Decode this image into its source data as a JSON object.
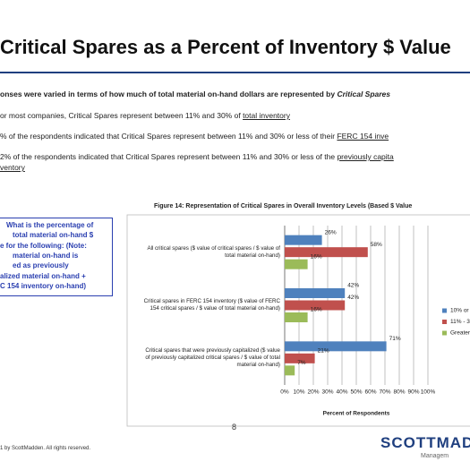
{
  "title": "Critical Spares as a Percent of Inventory $ Value",
  "intro": {
    "text": "onses were varied in terms of how much of total material on-hand dollars are represented by",
    "emphasis": "Critical Spares"
  },
  "bullets": [
    {
      "text": "or most companies, Critical Spares represent between 11% and 30% of",
      "underlined": [
        "total inventory"
      ]
    },
    {
      "text": "% of the respondents indicated that Critical Spares represent between 11% and 30% or less of their",
      "underlined": [
        "FERC 154 inve"
      ]
    },
    {
      "text": "2% of the respondents indicated that Critical Spares represent between 11% and 30% or less of the",
      "underlined": [
        "previously capita",
        "ventory"
      ]
    }
  ],
  "question": [
    "What is the percentage of",
    "total material on-hand $",
    "e for the following:  (Note:",
    "material on-hand is",
    "ed as previously",
    "alized material on-hand +",
    "C 154 inventory on-hand)"
  ],
  "figure_title": "Figure 14:  Representation of Critical Spares in Overall Inventory Levels (Based $ Value",
  "chart_data": {
    "type": "hbar",
    "categories": [
      "All critical spares ($ value of critical spares / $ value of total material on-hand)",
      "Critical spares in FERC 154 inventory ($ value of FERC 154 critical spares / $ value of total material on-hand)",
      "Critical spares that were previously capitalized ($ value of previously capitalized critical spares / $ value of total material on-hand)"
    ],
    "series": [
      {
        "name": "10% or",
        "color": "#4f81bd",
        "values": [
          26,
          42,
          71
        ],
        "value_labels": [
          "26%",
          "42%",
          "71%"
        ]
      },
      {
        "name": "11% - 3",
        "color": "#c0504d",
        "values": [
          58,
          42,
          21
        ],
        "value_labels": [
          "58%",
          "42%",
          "21%"
        ]
      },
      {
        "name": "Greater",
        "color": "#9bbb59",
        "values": [
          16,
          16,
          7
        ],
        "value_labels": [
          "16%",
          "16%",
          "7%"
        ]
      }
    ],
    "xlim": [
      0,
      100
    ],
    "xticks": [
      {
        "value": 0,
        "label": "0%"
      },
      {
        "value": 10,
        "label": "10%"
      },
      {
        "value": 20,
        "label": "20%"
      },
      {
        "value": 30,
        "label": "30%"
      },
      {
        "value": 40,
        "label": "40%"
      },
      {
        "value": 50,
        "label": "50%"
      },
      {
        "value": 60,
        "label": "60%"
      },
      {
        "value": 70,
        "label": "70%"
      },
      {
        "value": 80,
        "label": "80%"
      },
      {
        "value": 90,
        "label": "90%"
      },
      {
        "value": 100,
        "label": "100%"
      }
    ],
    "xlabel": "Percent of Respondents",
    "grid": true,
    "legend": "right"
  },
  "footer": "1 by ScottMadden.  All rights reserved.",
  "page_number": "8",
  "logo": {
    "name": "SCOTTMAD",
    "tagline": "Managem"
  }
}
